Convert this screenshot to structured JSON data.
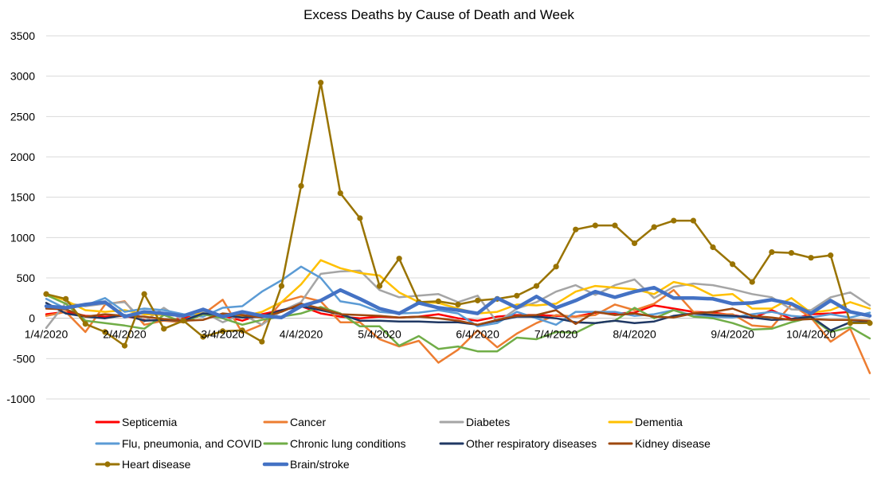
{
  "chart_data": {
    "type": "line",
    "title": "Excess Deaths by Cause of Death and Week",
    "ylim": [
      -1000,
      3500
    ],
    "yticks": [
      -1000,
      -500,
      0,
      500,
      1000,
      1500,
      2000,
      2500,
      3000,
      3500
    ],
    "ytick_labels": [
      "-1000",
      "-500",
      "0",
      "500",
      "1000",
      "1500",
      "2000",
      "2500",
      "3000",
      "3500"
    ],
    "x_start": "1/4/2020",
    "week_count": 43,
    "xtick_labels": [
      {
        "week": 0,
        "label": "1/4/2020"
      },
      {
        "week": 4,
        "label": "2/4/2020"
      },
      {
        "week": 9,
        "label": "3/4/2020"
      },
      {
        "week": 13,
        "label": "4/4/2020"
      },
      {
        "week": 17,
        "label": "5/4/2020"
      },
      {
        "week": 22,
        "label": "6/4/2020"
      },
      {
        "week": 26,
        "label": "7/4/2020"
      },
      {
        "week": 30,
        "label": "8/4/2020"
      },
      {
        "week": 35,
        "label": "9/4/2020"
      },
      {
        "week": 39,
        "label": "10/4/2020"
      }
    ],
    "grid": true,
    "legend_position": "bottom",
    "series": [
      {
        "name": "Septicemia",
        "color": "#ff0000",
        "marker": false,
        "values": [
          50,
          80,
          30,
          20,
          30,
          -20,
          -30,
          0,
          80,
          30,
          -30,
          50,
          100,
          150,
          60,
          20,
          0,
          20,
          10,
          20,
          50,
          0,
          -30,
          20,
          40,
          40,
          30,
          20,
          70,
          60,
          70,
          160,
          120,
          80,
          70,
          40,
          0,
          100,
          -10,
          50,
          60,
          80,
          30
        ]
      },
      {
        "name": "Cancer",
        "color": "#ed7d31",
        "marker": false,
        "values": [
          30,
          80,
          -170,
          170,
          210,
          -80,
          -30,
          -50,
          50,
          230,
          -180,
          -80,
          200,
          270,
          210,
          -50,
          -50,
          -260,
          -350,
          -280,
          -550,
          -390,
          -150,
          -360,
          -190,
          -60,
          40,
          20,
          40,
          170,
          100,
          180,
          350,
          80,
          50,
          50,
          -90,
          -110,
          170,
          10,
          -290,
          -130,
          -680
        ]
      },
      {
        "name": "Diabetes",
        "color": "#a5a5a5",
        "marker": false,
        "values": [
          -120,
          190,
          150,
          180,
          200,
          -40,
          130,
          -30,
          80,
          -50,
          50,
          -80,
          90,
          200,
          550,
          580,
          590,
          350,
          260,
          280,
          300,
          200,
          280,
          -50,
          120,
          200,
          330,
          410,
          290,
          410,
          480,
          250,
          390,
          430,
          410,
          360,
          300,
          260,
          110,
          100,
          260,
          320,
          160
        ]
      },
      {
        "name": "Dementia",
        "color": "#ffc000",
        "marker": false,
        "values": [
          300,
          220,
          100,
          80,
          100,
          50,
          40,
          30,
          60,
          40,
          20,
          80,
          200,
          420,
          720,
          620,
          560,
          530,
          320,
          200,
          190,
          120,
          60,
          80,
          170,
          160,
          180,
          330,
          400,
          380,
          360,
          300,
          450,
          400,
          280,
          300,
          120,
          120,
          250,
          70,
          100,
          200,
          120
        ]
      },
      {
        "name": "Flu, pneumonia, and COVID",
        "color": "#5b9bd5",
        "marker": false,
        "values": [
          240,
          120,
          160,
          250,
          80,
          120,
          100,
          50,
          20,
          130,
          150,
          330,
          470,
          640,
          500,
          210,
          170,
          80,
          60,
          70,
          100,
          60,
          -100,
          -60,
          80,
          0,
          -80,
          80,
          80,
          80,
          30,
          50,
          100,
          30,
          20,
          10,
          50,
          80,
          30,
          10,
          50,
          10,
          70
        ]
      },
      {
        "name": "Chronic lung conditions",
        "color": "#70ad47",
        "marker": false,
        "values": [
          290,
          180,
          -30,
          -60,
          -90,
          -130,
          40,
          -50,
          50,
          0,
          -80,
          -20,
          20,
          60,
          140,
          60,
          -100,
          -100,
          -340,
          -220,
          -380,
          -350,
          -410,
          -410,
          -240,
          -260,
          -170,
          -180,
          -60,
          -30,
          130,
          0,
          100,
          20,
          0,
          -60,
          -140,
          -130,
          -50,
          10,
          -170,
          -110,
          -250
        ]
      },
      {
        "name": "Other respiratory diseases",
        "color": "#203864",
        "marker": false,
        "values": [
          190,
          60,
          20,
          0,
          40,
          -30,
          -20,
          -30,
          60,
          40,
          10,
          20,
          100,
          150,
          100,
          50,
          -30,
          -30,
          -40,
          -40,
          -50,
          -50,
          -80,
          -30,
          20,
          20,
          0,
          -50,
          -60,
          -30,
          -60,
          -40,
          30,
          60,
          40,
          30,
          10,
          -20,
          -10,
          20,
          -150,
          -50,
          -50
        ]
      },
      {
        "name": "Kidney disease",
        "color": "#9e480e",
        "marker": false,
        "values": [
          120,
          110,
          20,
          50,
          30,
          20,
          -10,
          -30,
          -20,
          60,
          40,
          10,
          80,
          180,
          120,
          50,
          40,
          30,
          10,
          20,
          0,
          -30,
          -80,
          -20,
          30,
          40,
          100,
          -70,
          80,
          40,
          60,
          20,
          10,
          60,
          80,
          120,
          30,
          10,
          -20,
          -10,
          -20,
          -20,
          -30
        ]
      },
      {
        "name": "Heart disease",
        "color": "#997300",
        "marker": true,
        "values": [
          300,
          240,
          -70,
          -170,
          -340,
          300,
          -130,
          -30,
          -230,
          -160,
          -150,
          -290,
          400,
          1640,
          2920,
          1550,
          1240,
          400,
          740,
          200,
          210,
          170,
          220,
          240,
          280,
          400,
          640,
          1100,
          1150,
          1150,
          930,
          1130,
          1210,
          1210,
          880,
          670,
          450,
          820,
          810,
          750,
          780,
          -60,
          -60
        ]
      },
      {
        "name": "Brain/stroke",
        "color": "#4472c4",
        "marker": false,
        "bold": true,
        "values": [
          150,
          130,
          170,
          200,
          20,
          80,
          60,
          30,
          110,
          20,
          80,
          30,
          10,
          150,
          220,
          350,
          240,
          120,
          60,
          190,
          130,
          100,
          60,
          250,
          130,
          270,
          130,
          220,
          330,
          260,
          330,
          380,
          250,
          250,
          240,
          180,
          190,
          230,
          180,
          60,
          220,
          80,
          30
        ]
      }
    ]
  }
}
